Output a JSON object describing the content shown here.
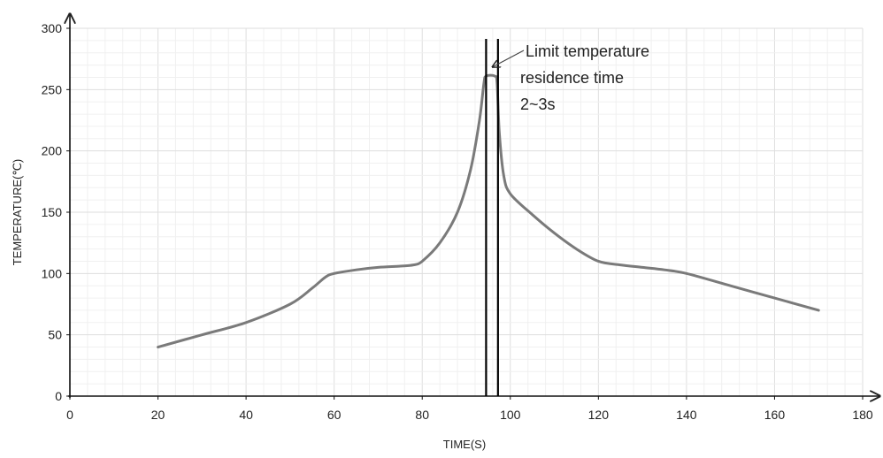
{
  "chart_data": {
    "type": "line",
    "title": "",
    "xlabel": "TIME(S)",
    "ylabel": "TEMPERATURE(℃)",
    "xlim": [
      0,
      180
    ],
    "ylim": [
      0,
      300
    ],
    "x_ticks": [
      "0",
      "20",
      "40",
      "60",
      "80",
      "100",
      "120",
      "140",
      "160",
      "180"
    ],
    "y_ticks": [
      "0",
      "50",
      "100",
      "150",
      "200",
      "250",
      "300"
    ],
    "grid": true,
    "series": [
      {
        "color": "#7a7a7a",
        "points": [
          [
            20,
            40
          ],
          [
            30,
            50
          ],
          [
            40,
            60
          ],
          [
            50,
            75
          ],
          [
            55,
            88
          ],
          [
            58,
            97
          ],
          [
            60,
            100
          ],
          [
            65,
            103
          ],
          [
            70,
            105
          ],
          [
            75,
            106
          ],
          [
            78,
            107
          ],
          [
            80,
            110
          ],
          [
            84,
            125
          ],
          [
            88,
            150
          ],
          [
            91,
            185
          ],
          [
            93,
            225
          ],
          [
            94,
            255
          ],
          [
            94.5,
            261
          ],
          [
            96.5,
            261
          ],
          [
            97,
            255
          ],
          [
            97.5,
            215
          ],
          [
            98.5,
            180
          ],
          [
            100,
            165
          ],
          [
            105,
            148
          ],
          [
            110,
            133
          ],
          [
            115,
            120
          ],
          [
            120,
            110
          ],
          [
            125,
            107
          ],
          [
            130,
            105
          ],
          [
            135,
            103
          ],
          [
            140,
            100
          ],
          [
            150,
            90
          ],
          [
            160,
            80
          ],
          [
            170,
            70
          ]
        ]
      }
    ],
    "markers": [
      {
        "type": "vertical-line",
        "x": 94.5,
        "color": "#000000"
      },
      {
        "type": "vertical-line",
        "x": 97.2,
        "color": "#000000"
      }
    ],
    "annotation": {
      "lines": [
        "Limit temperature",
        "residence time",
        "2~3s"
      ],
      "points_to": {
        "x": 95.8,
        "y": 270
      }
    }
  }
}
